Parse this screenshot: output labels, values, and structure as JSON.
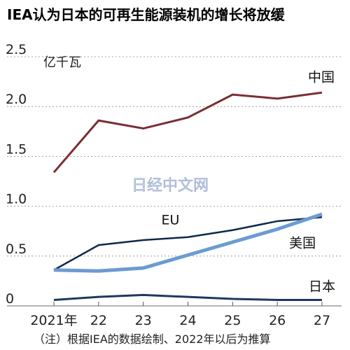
{
  "chart_data": {
    "type": "line",
    "title": "IEA认为日本的可再生能源装机的增长将放缓",
    "unit_label": "亿千瓦",
    "note": "（注）根据IEA的数据绘制、2022年以后为推算",
    "watermark": "日经中文网",
    "x": [
      "2021年",
      "22",
      "23",
      "24",
      "25",
      "26",
      "27"
    ],
    "ylim": [
      0,
      2.5
    ],
    "yticks": [
      "0",
      "0.5",
      "1.0",
      "1.5",
      "2.0",
      "2.5"
    ],
    "grid": "horizontal-dashed",
    "series": [
      {
        "name": "中国",
        "color": "#7b2d34",
        "values": [
          1.34,
          1.86,
          1.78,
          1.89,
          2.12,
          2.08,
          2.14
        ]
      },
      {
        "name": "EU",
        "color": "#0f2a4a",
        "values": [
          0.36,
          0.61,
          0.66,
          0.69,
          0.76,
          0.85,
          0.89
        ]
      },
      {
        "name": "美国",
        "color": "#6b9bd1",
        "values": [
          0.36,
          0.35,
          0.38,
          0.51,
          0.64,
          0.77,
          0.92
        ]
      },
      {
        "name": "日本",
        "color": "#1c3a5e",
        "values": [
          0.06,
          0.09,
          0.11,
          0.09,
          0.07,
          0.06,
          0.06
        ]
      }
    ]
  }
}
